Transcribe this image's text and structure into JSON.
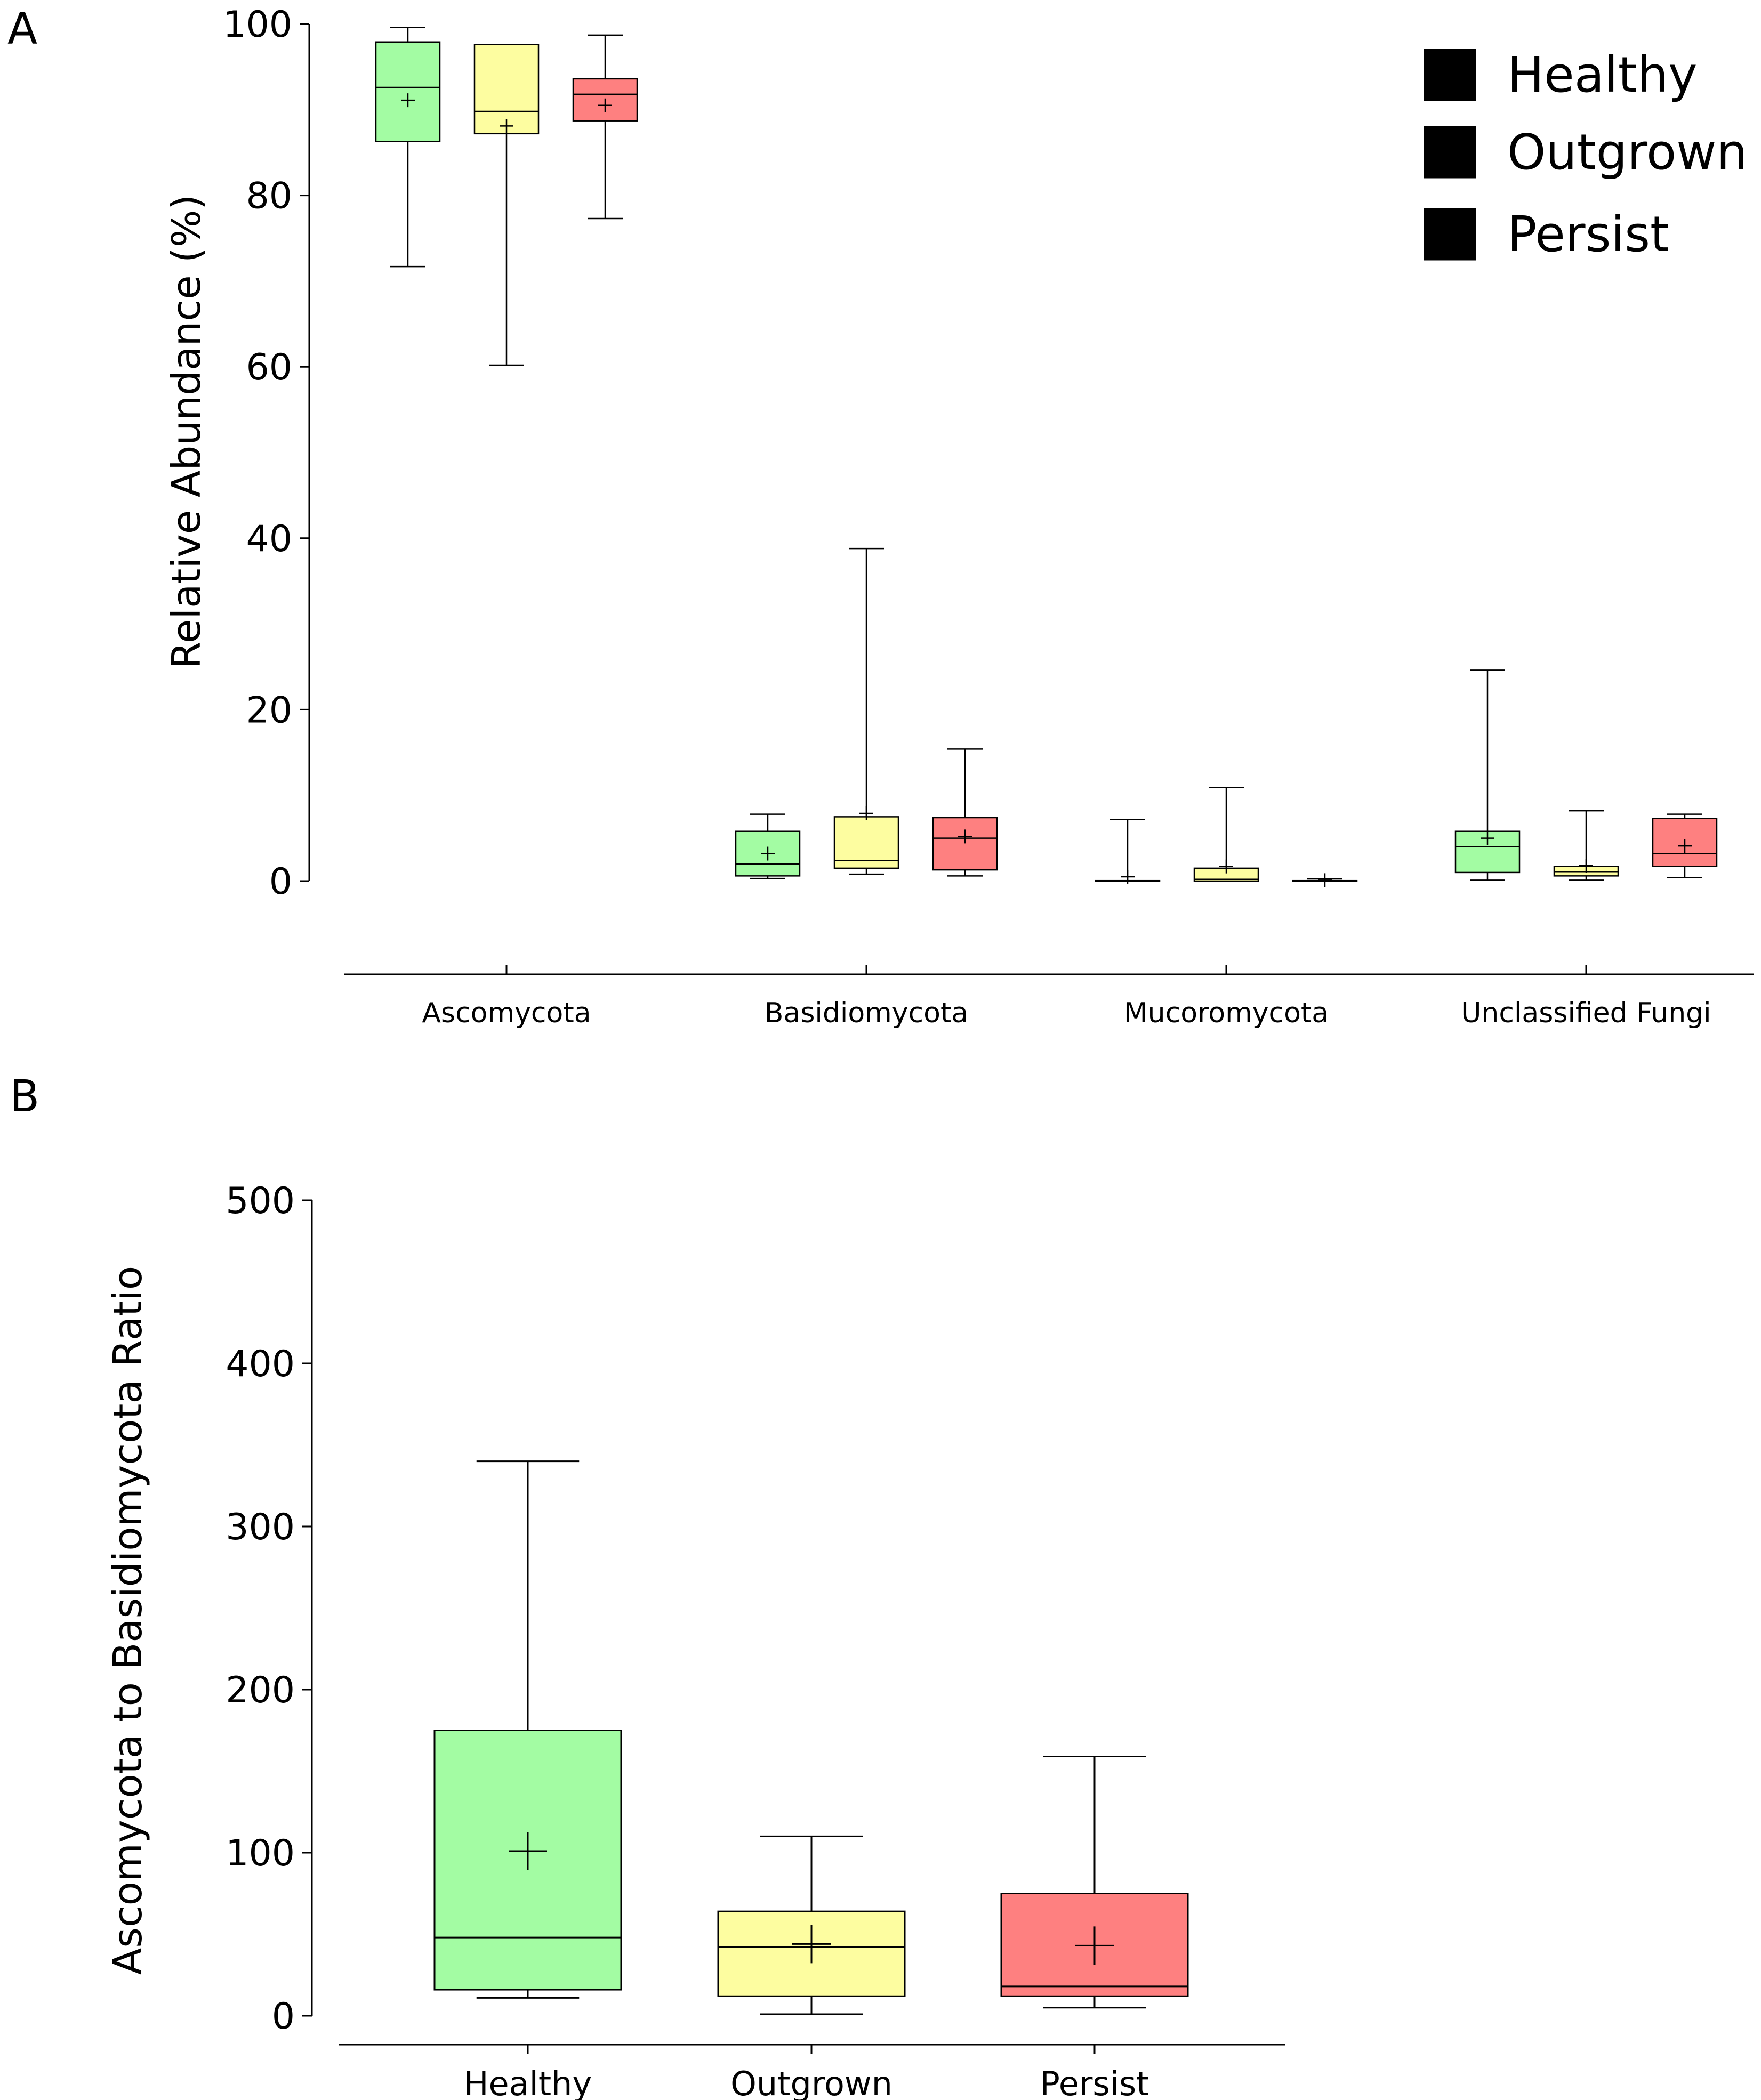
{
  "panels": {
    "a_label": "A",
    "b_label": "B"
  },
  "colors": {
    "Healthy": "#a3fca3",
    "Outgrown": "#fdfda0",
    "Persist": "#fe8080",
    "stroke": "#000000"
  },
  "chart_data": [
    {
      "type": "boxplot",
      "panel": "A",
      "title": "",
      "xlabel": "",
      "ylabel": "Relative Abundance (%)",
      "ylim": [
        -11,
        100
      ],
      "yticks": [
        "0",
        "20",
        "40",
        "60",
        "80",
        "100"
      ],
      "grid": false,
      "legend": {
        "position": "top-right",
        "entries": [
          "Healthy",
          "Outgrown",
          "Persist"
        ]
      },
      "categories": [
        "Ascomycota",
        "Basidiomycota",
        "Mucoromycota",
        "Unclassified Fungi"
      ],
      "series": [
        {
          "name": "Healthy",
          "boxes": [
            {
              "min": 71.7,
              "q1": 86.3,
              "median": 92.6,
              "q3": 97.9,
              "max": 99.6,
              "mean": 91.1
            },
            {
              "min": 0.3,
              "q1": 0.6,
              "median": 2.0,
              "q3": 5.8,
              "max": 7.8,
              "mean": 3.2
            },
            {
              "min": 0.0,
              "q1": 0.0,
              "median": 0.0,
              "q3": 0.05,
              "max": 7.2,
              "mean": 0.5
            },
            {
              "min": 0.1,
              "q1": 1.0,
              "median": 4.0,
              "q3": 5.8,
              "max": 24.6,
              "mean": 5.0
            }
          ]
        },
        {
          "name": "Outgrown",
          "boxes": [
            {
              "min": 60.2,
              "q1": 87.2,
              "median": 89.8,
              "q3": 97.6,
              "max": 97.6,
              "mean": 88.1
            },
            {
              "min": 0.8,
              "q1": 1.5,
              "median": 2.4,
              "q3": 7.5,
              "max": 38.8,
              "mean": 7.9
            },
            {
              "min": 0.0,
              "q1": 0.0,
              "median": 0.2,
              "q3": 1.5,
              "max": 10.9,
              "mean": 1.7
            },
            {
              "min": 0.1,
              "q1": 0.6,
              "median": 1.1,
              "q3": 1.7,
              "max": 8.2,
              "mean": 1.8
            }
          ]
        },
        {
          "name": "Persist",
          "boxes": [
            {
              "min": 77.3,
              "q1": 88.7,
              "median": 91.8,
              "q3": 93.6,
              "max": 98.7,
              "mean": 90.5
            },
            {
              "min": 0.6,
              "q1": 1.3,
              "median": 5.0,
              "q3": 7.4,
              "max": 15.4,
              "mean": 5.2
            },
            {
              "min": 0.0,
              "q1": 0.0,
              "median": 0.0,
              "q3": 0.05,
              "max": 0.25,
              "mean": 0.1
            },
            {
              "min": 0.4,
              "q1": 1.7,
              "median": 3.2,
              "q3": 7.3,
              "max": 7.8,
              "mean": 4.1
            }
          ]
        }
      ]
    },
    {
      "type": "boxplot",
      "panel": "B",
      "title": "",
      "xlabel": "",
      "ylabel": "Ascomycota to Basidiomycota Ratio",
      "ylim": [
        0,
        500
      ],
      "yticks": [
        "0",
        "100",
        "200",
        "300",
        "400",
        "500"
      ],
      "grid": false,
      "categories": [
        "Healthy",
        "Outgrown",
        "Persist"
      ],
      "boxes": [
        {
          "name": "Healthy",
          "min": 11,
          "q1": 16,
          "median": 48,
          "q3": 175,
          "max": 340,
          "mean": 101
        },
        {
          "name": "Outgrown",
          "min": 1,
          "q1": 12,
          "median": 42,
          "q3": 64,
          "max": 110,
          "mean": 44
        },
        {
          "name": "Persist",
          "min": 5,
          "q1": 12,
          "median": 18,
          "q3": 75,
          "max": 159,
          "mean": 43
        }
      ]
    }
  ]
}
